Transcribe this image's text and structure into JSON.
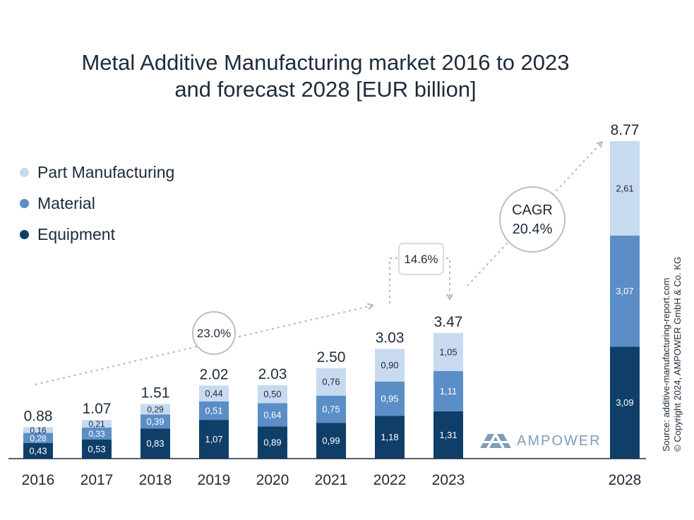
{
  "chart_data": {
    "type": "bar",
    "stacked": true,
    "title_line1": "Metal Additive Manufacturing market 2016 to 2023",
    "title_line2": "and forecast 2028 [EUR billion]",
    "categories": [
      "2016",
      "2017",
      "2018",
      "2019",
      "2020",
      "2021",
      "2022",
      "2023",
      "2028"
    ],
    "totals": [
      "0.88",
      "1.07",
      "1.51",
      "2.02",
      "2.03",
      "2.50",
      "3.03",
      "3.47",
      "8.77"
    ],
    "series": [
      {
        "name": "Equipment",
        "color": "#0f3f68",
        "values": [
          0.43,
          0.53,
          0.83,
          1.07,
          0.89,
          0.99,
          1.18,
          1.31,
          3.09
        ],
        "labels": [
          "0,43",
          "0,53",
          "0,83",
          "1,07",
          "0,89",
          "0,99",
          "1,18",
          "1,31",
          "3,09"
        ]
      },
      {
        "name": "Material",
        "color": "#5b8ec7",
        "values": [
          0.28,
          0.33,
          0.39,
          0.51,
          0.64,
          0.75,
          0.95,
          1.11,
          3.07
        ],
        "labels": [
          "0,28",
          "0,33",
          "0,39",
          "0,51",
          "0,64",
          "0,75",
          "0,95",
          "1,11",
          "3,07"
        ]
      },
      {
        "name": "Part Manufacturing",
        "color": "#c7daf0",
        "values": [
          0.16,
          0.21,
          0.29,
          0.44,
          0.5,
          0.76,
          0.9,
          1.05,
          2.61
        ],
        "labels": [
          "0,16",
          "0,21",
          "0,29",
          "0,44",
          "0,50",
          "0,76",
          "0,90",
          "1,05",
          "2,61"
        ]
      }
    ],
    "legend_order": [
      "Part Manufacturing",
      "Material",
      "Equipment"
    ],
    "annotations": [
      {
        "text": "23.0%",
        "type": "growth-circle"
      },
      {
        "text": "14.6%",
        "type": "growth-box"
      },
      {
        "text_line1": "CAGR",
        "text_line2": "20.4%",
        "type": "growth-circle"
      }
    ],
    "ylim": [
      0,
      9
    ]
  },
  "source_line1": "Source: additive-manufacturing-report.com",
  "source_line2": "© Copyright 2024, AMPOWER GmbH & Co. KG",
  "logo_text": "AMPOWER",
  "colors": {
    "text": "#1d2b3a",
    "arrow": "#b5b5b5",
    "axis": "#1d2b3a"
  }
}
